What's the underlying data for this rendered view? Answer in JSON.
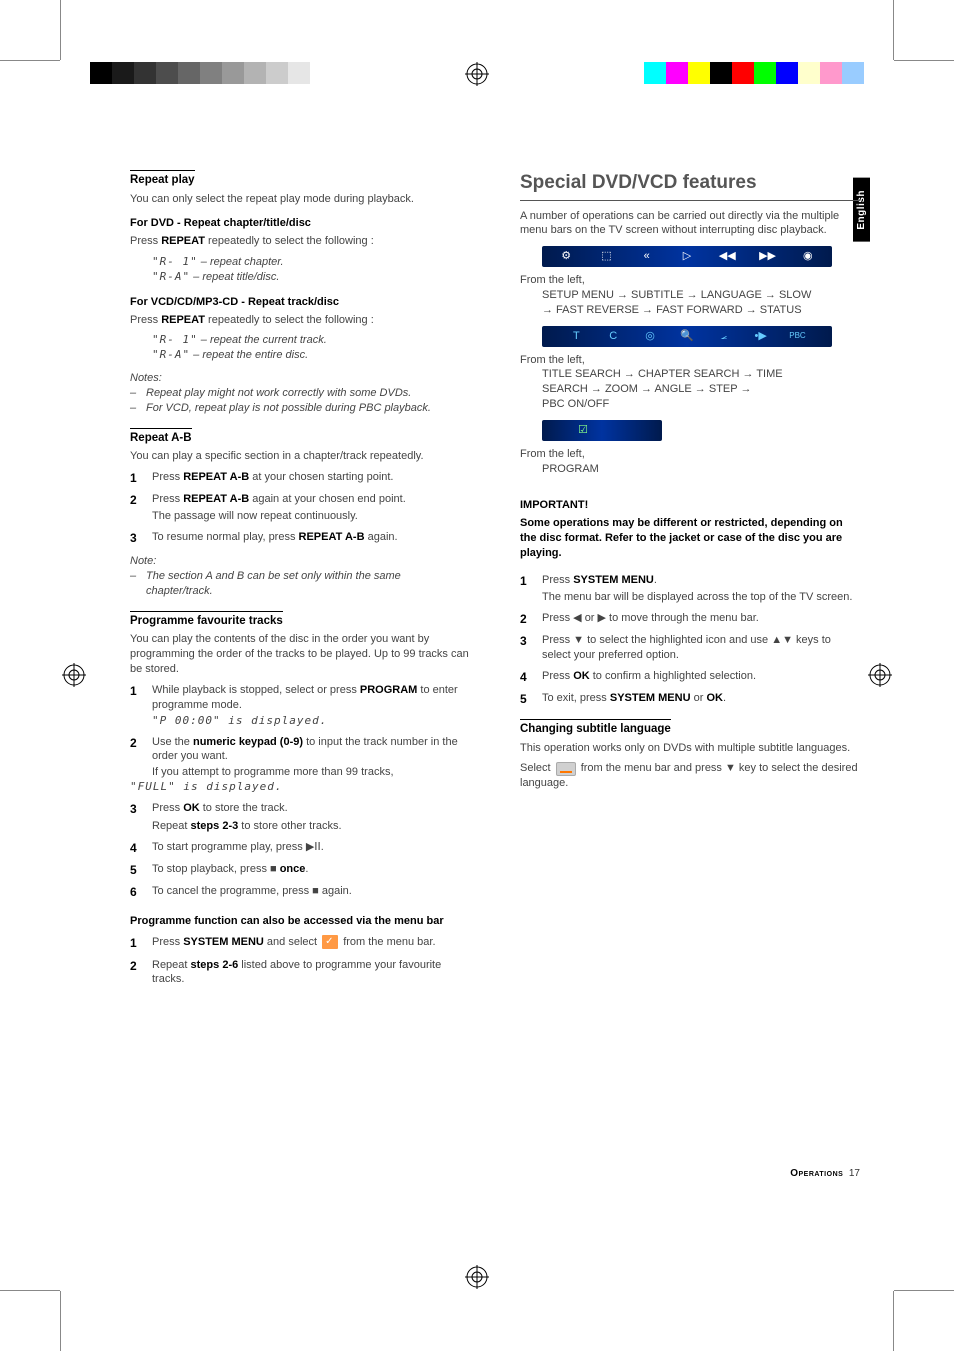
{
  "sideTab": "English",
  "footer": {
    "section": "Operations",
    "page": "17"
  },
  "colorbars": {
    "left": [
      "#000000",
      "#1a1a1a",
      "#333333",
      "#4d4d4d",
      "#666666",
      "#808080",
      "#999999",
      "#b3b3b3",
      "#cccccc",
      "#e6e6e6"
    ],
    "right": [
      "#00ffff",
      "#ff00ff",
      "#ffff00",
      "#000000",
      "#ff0000",
      "#00ff00",
      "#0000ff",
      "#ffffcc",
      "#ff99cc",
      "#99ccff"
    ]
  },
  "left": {
    "repeatPlay": {
      "heading": "Repeat play",
      "intro": "You can only select the repeat play mode during playback.",
      "dvd": {
        "heading": "For DVD - Repeat chapter/title/disc",
        "line": "Press REPEAT repeatedly to select the following :",
        "opts": [
          {
            "code": "\"R- 1\"",
            "desc": " – repeat chapter."
          },
          {
            "code": "\"R-A\"",
            "desc": " – repeat title/disc."
          }
        ]
      },
      "vcd": {
        "heading": "For VCD/CD/MP3-CD - Repeat track/disc",
        "line": "Press REPEAT repeatedly to select the following :",
        "opts": [
          {
            "code": "\"R- 1\"",
            "desc": " – repeat the current track."
          },
          {
            "code": "\"R-A\"",
            "desc": " – repeat the entire disc."
          }
        ]
      },
      "notesHead": "Notes:",
      "notes": [
        "Repeat play might not work correctly with some DVDs.",
        "For VCD, repeat play is not possible during PBC playback."
      ]
    },
    "repeatAB": {
      "heading": "Repeat A-B",
      "intro": "You can play a specific section in a chapter/track repeatedly.",
      "steps": [
        "Press REPEAT A-B at your chosen starting point.",
        "Press REPEAT A-B again at your chosen end point.",
        "To resume normal play, press REPEAT A-B again."
      ],
      "step2sub": "The passage will now repeat continuously.",
      "noteHead": "Note:",
      "note": "The section A and B can be set only within the same chapter/track."
    },
    "prog": {
      "heading": "Programme favourite tracks",
      "intro": "You can play the contents of the disc in the order you want by programming the order of the tracks to be played. Up to 99 tracks can be stored.",
      "steps": {
        "s1a": "While playback is stopped, select or press ",
        "s1b": "PROGRAM",
        "s1c": " to enter programme mode.",
        "s1sub": "\"P 00:00\" is displayed.",
        "s2a": "Use the ",
        "s2b": "numeric keypad (0-9)",
        "s2c": " to input the track number in the order you want.",
        "s2sub1": "If you attempt to programme more than 99 tracks,",
        "s2sub2": "\"FULL\" is displayed.",
        "s3a": "Press ",
        "s3b": "OK",
        "s3c": " to store the track.",
        "s3sub": "Repeat steps 2-3 to store other tracks.",
        "s4": "To start programme play, press ▶ⅠⅠ.",
        "s5a": "To stop playback, press ■ ",
        "s5b": "once",
        "s5c": ".",
        "s6": "To cancel the programme, press ■ again."
      },
      "altHeading": "Programme function can also be accessed via the menu bar",
      "altSteps": {
        "s1a": "Press ",
        "s1b": "SYSTEM MENU",
        "s1c": " and select ",
        "s1d": " from the menu bar.",
        "s2a": "Repeat ",
        "s2b": "steps 2-6",
        "s2c": " listed above to programme your favourite tracks."
      }
    }
  },
  "right": {
    "heading": "Special DVD/VCD features",
    "intro": "A number of operations can be carried out directly via the multiple menu bars on the TV screen without interrupting disc playback.",
    "bar1": {
      "fromLeft": "From the left,",
      "line1": "SETUP MENU → SUBTITLE → LANGUAGE → SLOW",
      "line2": "→ FAST REVERSE → FAST FORWARD → STATUS"
    },
    "bar2": {
      "fromLeft": "From the left,",
      "line1": "TITLE SEARCH → CHAPTER SEARCH → TIME",
      "line2": "SEARCH → ZOOM → ANGLE → STEP →",
      "line3": "PBC ON/OFF"
    },
    "bar3": {
      "fromLeft": "From the left,",
      "line1": "PROGRAM"
    },
    "important": {
      "head": "IMPORTANT!",
      "body": "Some operations may be different or restricted, depending on the disc format. Refer to the jacket or case of the disc you are playing."
    },
    "steps": {
      "s1a": "Press ",
      "s1b": "SYSTEM MENU",
      "s1c": ".",
      "s1sub": "The menu bar will be displayed across the top of the TV screen.",
      "s2": "Press ◀ or ▶ to move through the menu bar.",
      "s3": "Press ▼ to select the highlighted icon and use ▲▼ keys to select your preferred option.",
      "s4a": "Press ",
      "s4b": "OK",
      "s4c": " to confirm a highlighted selection.",
      "s5a": "To exit, press ",
      "s5b": "SYSTEM MENU",
      "s5c": " or ",
      "s5d": "OK",
      "s5e": "."
    },
    "subtitle": {
      "heading": "Changing subtitle language",
      "intro": "This operation works only on DVDs with multiple subtitle languages.",
      "body1": "Select ",
      "body2": " from the menu bar and press ▼ key to select the desired language."
    }
  }
}
